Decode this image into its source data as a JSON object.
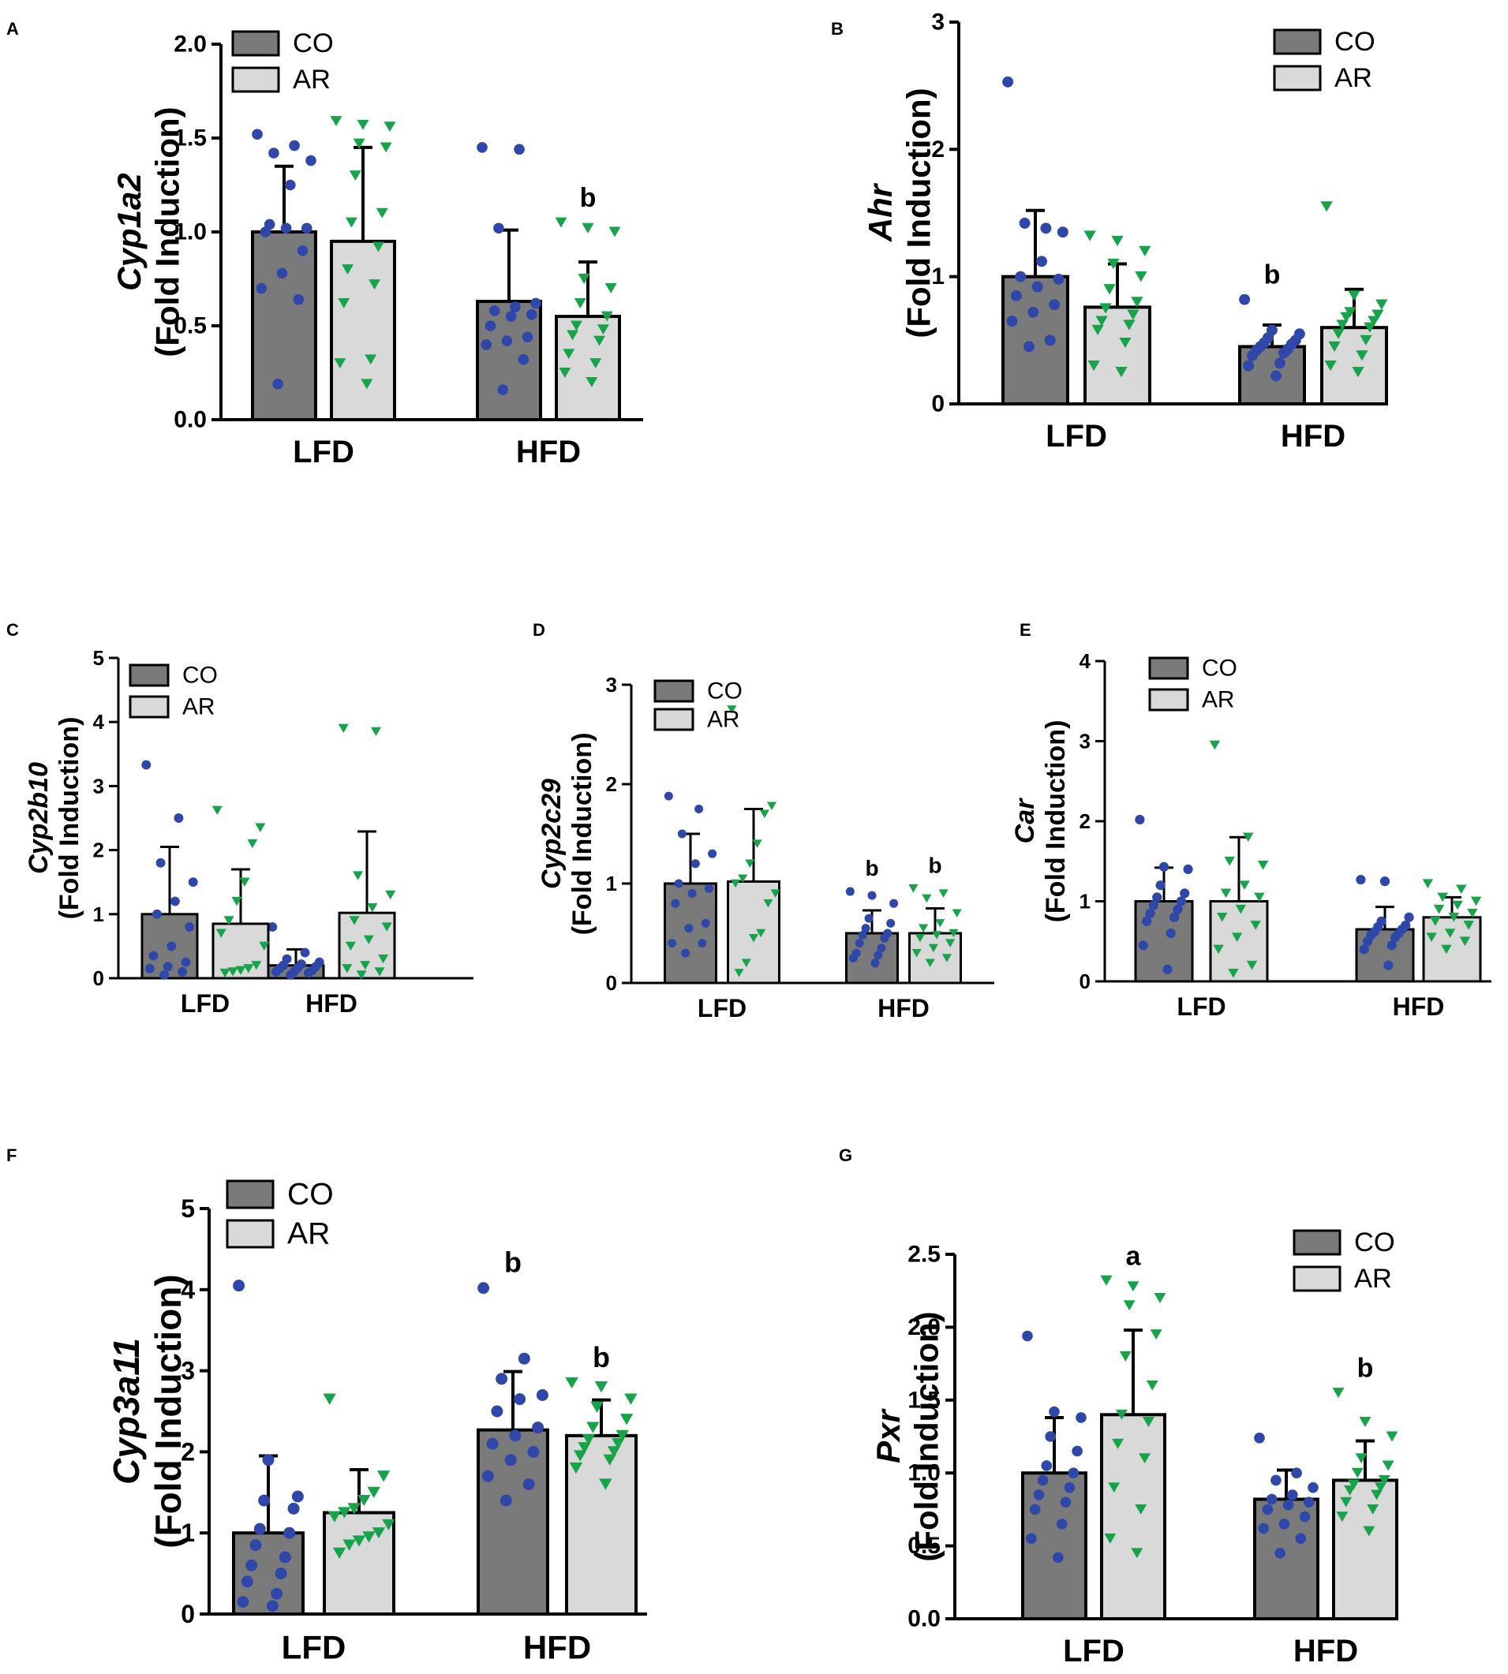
{
  "figure": {
    "panel_count": 7
  },
  "colors": {
    "co_bar": "#7a7a7a",
    "ar_bar": "#d9d9d9",
    "co_dot": "#2f47a8",
    "ar_dot": "#16a34a",
    "axis": "#000000"
  },
  "chart_data": [
    {
      "id": "A",
      "panel_label": "A",
      "type": "bar",
      "gene": "Cyp1a2",
      "ylabel_sub": "(Fold Induction)",
      "categories": [
        "LFD",
        "HFD"
      ],
      "legend": [
        "CO",
        "AR"
      ],
      "ylim": [
        0,
        2.0
      ],
      "yticks": [
        "0.0",
        "0.5",
        "1.0",
        "1.5",
        "2.0"
      ],
      "series": [
        {
          "name": "CO",
          "values": [
            1.0,
            0.63
          ],
          "sd": [
            0.35,
            0.38
          ],
          "points": [
            [
              1.52,
              1.46,
              1.42,
              1.38,
              1.25,
              1.04,
              1.02,
              1.02,
              1.0,
              0.9,
              0.78,
              0.7,
              0.64,
              0.19
            ],
            [
              1.45,
              1.44,
              1.02,
              0.62,
              0.6,
              0.58,
              0.56,
              0.55,
              0.5,
              0.44,
              0.42,
              0.4,
              0.32,
              0.16
            ]
          ]
        },
        {
          "name": "AR",
          "values": [
            0.95,
            0.55
          ],
          "sd": [
            0.5,
            0.29
          ],
          "points": [
            [
              1.59,
              1.57,
              1.56,
              1.47,
              1.45,
              1.3,
              1.1,
              1.05,
              0.92,
              0.8,
              0.72,
              0.62,
              0.32,
              0.3,
              0.19
            ],
            [
              1.05,
              1.02,
              1.0,
              0.75,
              0.7,
              0.62,
              0.55,
              0.5,
              0.48,
              0.45,
              0.42,
              0.35,
              0.3,
              0.25,
              0.2
            ]
          ]
        }
      ],
      "annotations": [
        {
          "text": "b",
          "series": 1,
          "category": 1
        }
      ]
    },
    {
      "id": "B",
      "panel_label": "B",
      "type": "bar",
      "gene": "Ahr",
      "ylabel_sub": "(Fold Induction)",
      "categories": [
        "LFD",
        "HFD"
      ],
      "legend": [
        "CO",
        "AR"
      ],
      "ylim": [
        0,
        3
      ],
      "yticks": [
        "0",
        "1",
        "2",
        "3"
      ],
      "series": [
        {
          "name": "CO",
          "values": [
            1.0,
            0.45
          ],
          "sd": [
            0.52,
            0.17
          ],
          "points": [
            [
              2.53,
              1.38,
              1.42,
              1.35,
              1.12,
              1.0,
              0.98,
              0.92,
              0.85,
              0.78,
              0.72,
              0.65,
              0.5,
              0.45
            ],
            [
              0.82,
              0.58,
              0.55,
              0.52,
              0.5,
              0.48,
              0.47,
              0.45,
              0.43,
              0.42,
              0.4,
              0.38,
              0.32,
              0.3,
              0.22
            ]
          ]
        },
        {
          "name": "AR",
          "values": [
            0.76,
            0.6
          ],
          "sd": [
            0.34,
            0.3
          ],
          "points": [
            [
              1.32,
              1.28,
              1.2,
              1.1,
              1.0,
              0.9,
              0.8,
              0.75,
              0.7,
              0.65,
              0.62,
              0.58,
              0.48,
              0.3,
              0.25
            ],
            [
              1.55,
              0.85,
              0.78,
              0.72,
              0.7,
              0.68,
              0.65,
              0.62,
              0.6,
              0.55,
              0.5,
              0.45,
              0.38,
              0.3,
              0.25
            ]
          ]
        }
      ],
      "annotations": [
        {
          "text": "b",
          "series": 0,
          "category": 1
        }
      ]
    },
    {
      "id": "C",
      "panel_label": "C",
      "type": "bar",
      "gene": "Cyp2b10",
      "ylabel_sub": "(Fold Induction)",
      "categories": [
        "LFD",
        "HFD"
      ],
      "legend": [
        "CO",
        "AR"
      ],
      "ylim": [
        0,
        5
      ],
      "yticks": [
        "0",
        "1",
        "2",
        "3",
        "4",
        "5"
      ],
      "series": [
        {
          "name": "CO",
          "values": [
            1.0,
            0.2
          ],
          "sd": [
            1.05,
            0.25
          ],
          "points": [
            [
              3.33,
              2.5,
              1.8,
              1.5,
              1.2,
              1.0,
              0.8,
              0.5,
              0.35,
              0.25,
              0.18,
              0.15,
              0.1,
              0.05
            ],
            [
              0.8,
              0.4,
              0.3,
              0.25,
              0.22,
              0.2,
              0.18,
              0.16,
              0.15,
              0.12,
              0.1,
              0.1,
              0.08,
              0.05
            ]
          ]
        },
        {
          "name": "AR",
          "values": [
            0.85,
            1.02
          ],
          "sd": [
            0.85,
            1.27
          ],
          "points": [
            [
              2.62,
              2.35,
              2.1,
              1.5,
              1.2,
              0.9,
              0.7,
              0.5,
              0.2,
              0.15,
              0.12,
              0.1,
              0.08
            ],
            [
              3.9,
              3.85,
              1.6,
              1.3,
              1.1,
              0.9,
              0.8,
              0.6,
              0.5,
              0.3,
              0.2,
              0.15,
              0.1,
              0.05
            ]
          ]
        }
      ],
      "annotations": []
    },
    {
      "id": "D",
      "panel_label": "D",
      "type": "bar",
      "gene": "Cyp2c29",
      "ylabel_sub": "(Fold Induction)",
      "categories": [
        "LFD",
        "HFD"
      ],
      "legend": [
        "CO",
        "AR"
      ],
      "ylim": [
        0,
        3
      ],
      "yticks": [
        "0",
        "1",
        "2",
        "3"
      ],
      "series": [
        {
          "name": "CO",
          "values": [
            1.0,
            0.5
          ],
          "sd": [
            0.5,
            0.23
          ],
          "points": [
            [
              1.88,
              1.75,
              1.5,
              1.3,
              1.2,
              1.0,
              0.95,
              0.9,
              0.8,
              0.6,
              0.55,
              0.4,
              0.4,
              0.3
            ],
            [
              0.92,
              0.88,
              0.8,
              0.65,
              0.6,
              0.55,
              0.5,
              0.48,
              0.45,
              0.4,
              0.35,
              0.3,
              0.28,
              0.25,
              0.2
            ]
          ]
        },
        {
          "name": "AR",
          "values": [
            1.02,
            0.5
          ],
          "sd": [
            0.73,
            0.25
          ],
          "points": [
            [
              2.75,
              1.78,
              1.7,
              1.4,
              1.2,
              1.05,
              1.0,
              0.9,
              0.8,
              0.5,
              0.45,
              0.2,
              0.1
            ],
            [
              0.95,
              0.9,
              0.85,
              0.7,
              0.6,
              0.55,
              0.5,
              0.48,
              0.45,
              0.4,
              0.35,
              0.3,
              0.25,
              0.2
            ]
          ]
        }
      ],
      "annotations": [
        {
          "text": "b",
          "series": 0,
          "category": 1
        },
        {
          "text": "b",
          "series": 1,
          "category": 1
        }
      ]
    },
    {
      "id": "E",
      "panel_label": "E",
      "type": "bar",
      "gene": "Car",
      "ylabel_sub": "(Fold Induction)",
      "categories": [
        "LFD",
        "HFD"
      ],
      "legend": [
        "CO",
        "AR"
      ],
      "ylim": [
        0,
        4
      ],
      "yticks": [
        "0",
        "1",
        "2",
        "3",
        "4"
      ],
      "series": [
        {
          "name": "CO",
          "values": [
            1.0,
            0.65
          ],
          "sd": [
            0.42,
            0.28
          ],
          "points": [
            [
              2.02,
              1.43,
              1.4,
              1.2,
              1.1,
              1.05,
              1.0,
              0.95,
              0.9,
              0.85,
              0.8,
              0.75,
              0.6,
              0.45,
              0.15
            ],
            [
              1.27,
              1.25,
              0.8,
              0.75,
              0.7,
              0.68,
              0.65,
              0.62,
              0.6,
              0.58,
              0.55,
              0.5,
              0.45,
              0.4,
              0.2
            ]
          ]
        },
        {
          "name": "AR",
          "values": [
            1.0,
            0.8
          ],
          "sd": [
            0.8,
            0.25
          ],
          "points": [
            [
              2.95,
              1.8,
              1.5,
              1.45,
              1.2,
              1.1,
              1.05,
              0.9,
              0.8,
              0.7,
              0.55,
              0.4,
              0.2,
              0.1
            ],
            [
              1.22,
              1.15,
              1.05,
              1.0,
              0.95,
              0.9,
              0.85,
              0.8,
              0.75,
              0.7,
              0.6,
              0.55,
              0.5,
              0.4
            ]
          ]
        }
      ],
      "annotations": []
    },
    {
      "id": "F",
      "panel_label": "F",
      "type": "bar",
      "gene": "Cyp3a11",
      "ylabel_sub": "(Fold Induction)",
      "categories": [
        "LFD",
        "HFD"
      ],
      "legend": [
        "CO",
        "AR"
      ],
      "ylim": [
        0,
        5
      ],
      "yticks": [
        "0",
        "1",
        "2",
        "3",
        "4",
        "5"
      ],
      "series": [
        {
          "name": "CO",
          "values": [
            1.0,
            2.27
          ],
          "sd": [
            0.95,
            0.72
          ],
          "points": [
            [
              4.05,
              1.9,
              1.45,
              1.4,
              1.3,
              1.05,
              1.0,
              0.85,
              0.7,
              0.6,
              0.5,
              0.4,
              0.25,
              0.15,
              0.1
            ],
            [
              4.02,
              3.15,
              2.9,
              2.7,
              2.65,
              2.5,
              2.3,
              2.2,
              2.1,
              2.0,
              1.9,
              1.7,
              1.6,
              1.4
            ]
          ]
        },
        {
          "name": "AR",
          "values": [
            1.25,
            2.2
          ],
          "sd": [
            0.53,
            0.44
          ],
          "points": [
            [
              2.65,
              1.7,
              1.5,
              1.4,
              1.3,
              1.25,
              1.2,
              1.1,
              1.0,
              0.95,
              0.9,
              0.85,
              0.75
            ],
            [
              2.85,
              2.8,
              2.65,
              2.55,
              2.4,
              2.3,
              2.2,
              2.15,
              2.1,
              2.05,
              2.0,
              1.95,
              1.9,
              1.8,
              1.6
            ]
          ]
        }
      ],
      "annotations": [
        {
          "text": "b",
          "series": 0,
          "category": 1
        },
        {
          "text": "b",
          "series": 1,
          "category": 1
        }
      ]
    },
    {
      "id": "G",
      "panel_label": "G",
      "type": "bar",
      "gene": "Pxr",
      "ylabel_sub": "(Fold Induction)",
      "categories": [
        "LFD",
        "HFD"
      ],
      "legend": [
        "CO",
        "AR"
      ],
      "ylim": [
        0,
        2.5
      ],
      "yticks": [
        "0.0",
        "0.5",
        "1.0",
        "1.5",
        "2.0",
        "2.5"
      ],
      "series": [
        {
          "name": "CO",
          "values": [
            1.0,
            0.82
          ],
          "sd": [
            0.38,
            0.2
          ],
          "points": [
            [
              1.94,
              1.42,
              1.38,
              1.25,
              1.15,
              1.05,
              1.0,
              0.95,
              0.9,
              0.85,
              0.8,
              0.75,
              0.65,
              0.55,
              0.42
            ],
            [
              1.24,
              1.0,
              0.95,
              0.9,
              0.85,
              0.82,
              0.8,
              0.78,
              0.75,
              0.7,
              0.65,
              0.62,
              0.55,
              0.45
            ]
          ]
        },
        {
          "name": "AR",
          "values": [
            1.4,
            0.95
          ],
          "sd": [
            0.58,
            0.27
          ],
          "points": [
            [
              2.32,
              2.28,
              2.2,
              2.15,
              1.95,
              1.8,
              1.6,
              1.4,
              1.35,
              1.2,
              1.1,
              0.9,
              0.75,
              0.55,
              0.45
            ],
            [
              1.55,
              1.35,
              1.25,
              1.1,
              1.05,
              1.0,
              0.95,
              0.92,
              0.9,
              0.88,
              0.85,
              0.8,
              0.75,
              0.7,
              0.6
            ]
          ]
        }
      ],
      "annotations": [
        {
          "text": "a",
          "series": 1,
          "category": 0
        },
        {
          "text": "b",
          "series": 1,
          "category": 1
        }
      ]
    }
  ]
}
